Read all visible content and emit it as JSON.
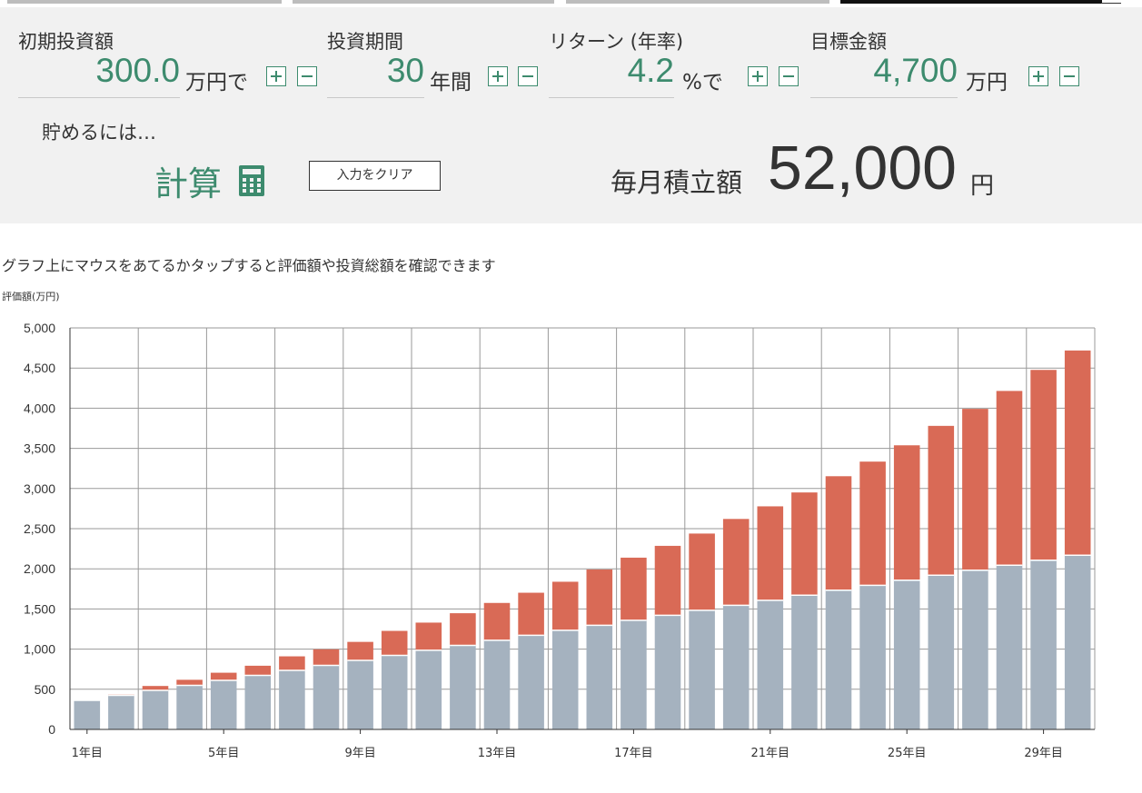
{
  "colors": {
    "accent": "#3d8b6e",
    "principal": "#a5b2bf",
    "gain": "#d96a56",
    "panel": "#f1f1f1"
  },
  "inputs": {
    "initial": {
      "label": "初期投資額",
      "value": "300.0",
      "unit": "万円で"
    },
    "period": {
      "label": "投資期間",
      "value": "30",
      "unit": "年間"
    },
    "return": {
      "label": "リターン (年率)",
      "value": "4.2",
      "unit": "%で"
    },
    "target": {
      "label": "目標金額",
      "value": "4,700",
      "unit": "万円"
    }
  },
  "save_label": "貯めるには…",
  "calc_label": "計算",
  "calc_icon": "calculator-icon",
  "clear_label": "入力をクリア",
  "result": {
    "label": "毎月積立額",
    "value": "52,000",
    "unit": "円"
  },
  "chart_note": "グラフ上にマウスをあてるかタップすると評価額や投資総額を確認できます",
  "chart_data": {
    "type": "bar",
    "stacked": true,
    "ylabel": "評価額(万円)",
    "ylim": [
      0,
      5000
    ],
    "yticks": [
      "0",
      "500",
      "1,000",
      "1,500",
      "2,000",
      "2,500",
      "3,000",
      "3,500",
      "4,000",
      "4,500",
      "5,000"
    ],
    "categories": [
      "1年目",
      "2年目",
      "3年目",
      "4年目",
      "5年目",
      "6年目",
      "7年目",
      "8年目",
      "9年目",
      "10年目",
      "11年目",
      "12年目",
      "13年目",
      "14年目",
      "15年目",
      "16年目",
      "17年目",
      "18年目",
      "19年目",
      "20年目",
      "21年目",
      "22年目",
      "23年目",
      "24年目",
      "25年目",
      "26年目",
      "27年目",
      "28年目",
      "29年目",
      "30年目"
    ],
    "xtick_labels": [
      "1年目",
      "5年目",
      "9年目",
      "13年目",
      "17年目",
      "21年目",
      "25年目",
      "29年目"
    ],
    "grid": true,
    "series": [
      {
        "name": "",
        "color": "#a5b2bf",
        "values": [
          362,
          424,
          486,
          548,
          611,
          673,
          735,
          798,
          860,
          922,
          985,
          1047,
          1110,
          1172,
          1234,
          1297,
          1359,
          1421,
          1484,
          1546,
          1608,
          1671,
          1733,
          1795,
          1858,
          1920,
          1982,
          2045,
          2107,
          2169
        ]
      },
      {
        "name": "",
        "color": "#d96a56",
        "values": [
          0,
          10,
          55,
          70,
          95,
          120,
          175,
          200,
          230,
          305,
          345,
          400,
          465,
          530,
          605,
          695,
          780,
          865,
          955,
          1075,
          1170,
          1280,
          1420,
          1540,
          1680,
          1860,
          2010,
          2170,
          2370,
          2550
        ]
      }
    ]
  }
}
